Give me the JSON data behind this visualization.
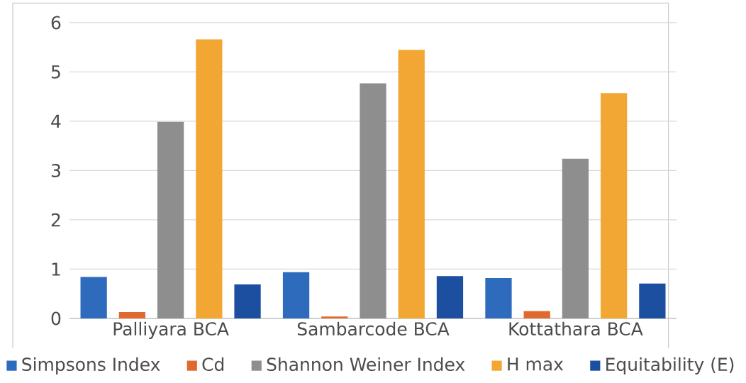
{
  "chart_data": {
    "type": "bar",
    "categories": [
      "Palliyara BCA",
      "Sambarcode BCA",
      "Kottathara BCA"
    ],
    "series": [
      {
        "name": "Simpsons Index",
        "color": "#2e6bbd",
        "values": [
          0.84,
          0.94,
          0.82
        ]
      },
      {
        "name": "Cd",
        "color": "#e0692f",
        "values": [
          0.13,
          0.04,
          0.15
        ]
      },
      {
        "name": "Shannon Weiner Index",
        "color": "#8e8e8e",
        "values": [
          3.99,
          4.77,
          3.24
        ]
      },
      {
        "name": "H max",
        "color": "#f2a735",
        "values": [
          5.66,
          5.45,
          4.57
        ]
      },
      {
        "name": "Equitability (E)",
        "color": "#1c4fa0",
        "values": [
          0.69,
          0.86,
          0.71
        ]
      }
    ],
    "ylim": [
      0,
      6
    ],
    "yticks": [
      0,
      1,
      2,
      3,
      4,
      5,
      6
    ],
    "grid": "y",
    "legend": "bottom"
  }
}
